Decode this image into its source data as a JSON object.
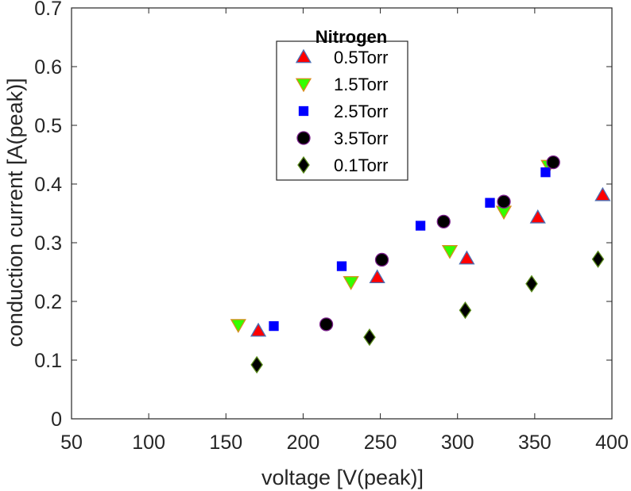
{
  "chart_data": {
    "type": "scatter",
    "title": "",
    "xlabel": "voltage [V(peak)]",
    "ylabel": "conduction current [A(peak)]",
    "xlim": [
      50,
      400
    ],
    "ylim": [
      0,
      0.7
    ],
    "xticks": [
      "50",
      "100",
      "150",
      "200",
      "250",
      "300",
      "350",
      "400"
    ],
    "yticks": [
      "0",
      "0.1",
      "0.2",
      "0.3",
      "0.4",
      "0.5",
      "0.6",
      "0.7"
    ],
    "grid": false,
    "legend": {
      "title": "Nitrogen",
      "position": "top-center"
    },
    "series": [
      {
        "name": "0.5Torr",
        "marker": "triangle-up",
        "fill": "#ff0000",
        "stroke": "#4a6fb5",
        "points": [
          [
            171,
            0.15
          ],
          [
            248,
            0.241
          ],
          [
            306,
            0.273
          ],
          [
            352,
            0.343
          ],
          [
            394,
            0.381
          ]
        ]
      },
      {
        "name": "1.5Torr",
        "marker": "triangle-down",
        "fill": "#33ff00",
        "stroke": "#d98a1c",
        "points": [
          [
            158,
            0.16
          ],
          [
            231,
            0.233
          ],
          [
            295,
            0.286
          ],
          [
            330,
            0.353
          ],
          [
            359,
            0.431
          ]
        ]
      },
      {
        "name": "2.5Torr",
        "marker": "square",
        "fill": "#0000ff",
        "stroke": "#0000ff",
        "points": [
          [
            181,
            0.158
          ],
          [
            225,
            0.26
          ],
          [
            276,
            0.329
          ],
          [
            321,
            0.368
          ],
          [
            357,
            0.42
          ]
        ]
      },
      {
        "name": "3.5Torr",
        "marker": "circle",
        "fill": "#000000",
        "stroke": "#7a1f8a",
        "points": [
          [
            215,
            0.161
          ],
          [
            251,
            0.271
          ],
          [
            291,
            0.336
          ],
          [
            330,
            0.37
          ],
          [
            362,
            0.437
          ]
        ]
      },
      {
        "name": "0.1Torr",
        "marker": "diamond",
        "fill": "#000000",
        "stroke": "#5a8c1c",
        "points": [
          [
            170,
            0.092
          ],
          [
            243,
            0.139
          ],
          [
            305,
            0.185
          ],
          [
            348,
            0.23
          ],
          [
            391,
            0.272
          ]
        ]
      }
    ]
  }
}
